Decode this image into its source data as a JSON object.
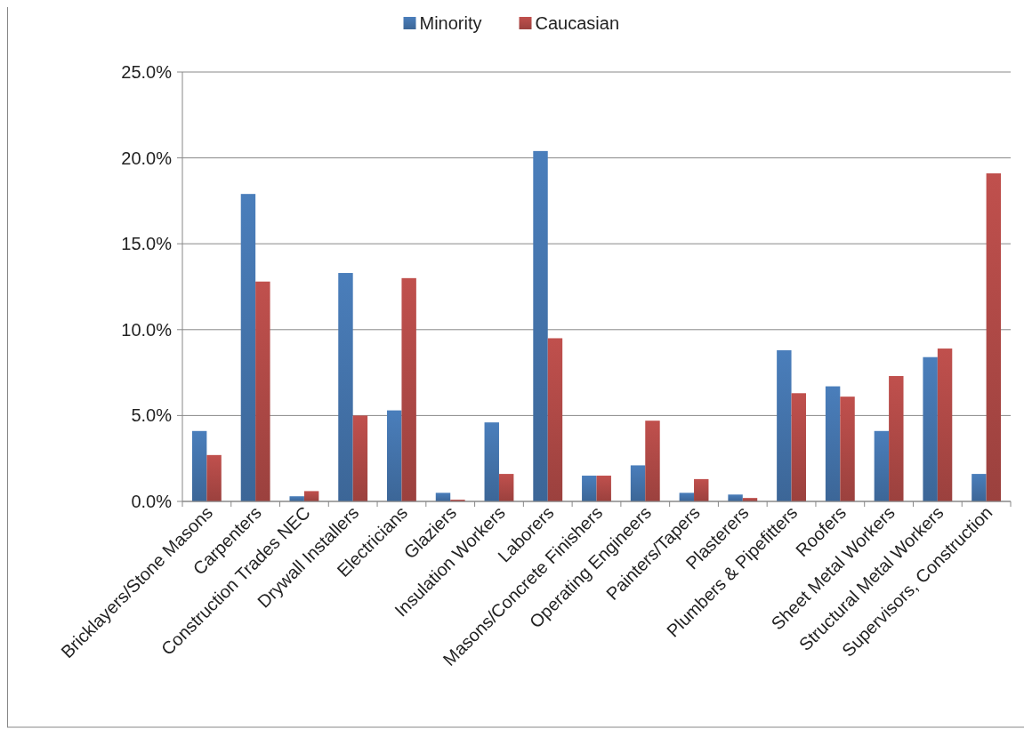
{
  "chart_data": {
    "type": "bar",
    "categories": [
      "Bricklayers/Stone Masons",
      "Carpenters",
      "Construction Trades NEC",
      "Drywall Installers",
      "Electricians",
      "Glaziers",
      "Insulation Workers",
      "Laborers",
      "Masons/Concrete Finishers",
      "Operating Engineers",
      "Painters/Tapers",
      "Plasterers",
      "Plumbers & Pipefitters",
      "Roofers",
      "Sheet Metal Workers",
      "Structural Metal Workers",
      "Supervisors, Construction"
    ],
    "series": [
      {
        "name": "Minority",
        "color": "#4a7ebb",
        "values": [
          4.1,
          17.9,
          0.3,
          13.3,
          5.3,
          0.5,
          4.6,
          20.4,
          1.5,
          2.1,
          0.5,
          0.4,
          8.8,
          6.7,
          4.1,
          8.4,
          1.6
        ]
      },
      {
        "name": "Caucasian",
        "color": "#c0504d",
        "values": [
          2.7,
          12.8,
          0.6,
          5.0,
          13.0,
          0.1,
          1.6,
          9.5,
          1.5,
          4.7,
          1.3,
          0.2,
          6.3,
          6.1,
          7.3,
          8.9,
          19.1
        ]
      }
    ],
    "ylim": [
      0,
      25
    ],
    "yticks": [
      {
        "value": 0,
        "label": "0.0%"
      },
      {
        "value": 5,
        "label": "5.0%"
      },
      {
        "value": 10,
        "label": "10.0%"
      },
      {
        "value": 15,
        "label": "15.0%"
      },
      {
        "value": 20,
        "label": "20.0%"
      },
      {
        "value": 25,
        "label": "25.0%"
      }
    ],
    "grid": "y",
    "legend": "top"
  }
}
